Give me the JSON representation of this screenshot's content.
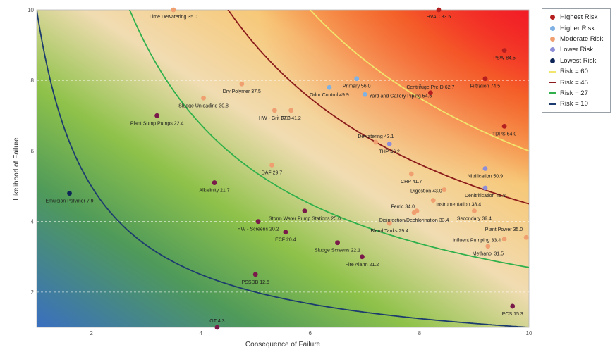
{
  "chart_data": {
    "type": "scatter",
    "xlabel": "Consequence of Failure",
    "ylabel": "Likelihood of Failure",
    "xlim": [
      1,
      10
    ],
    "ylim": [
      1,
      10
    ],
    "x_ticks": [
      "2",
      "4",
      "6",
      "8",
      "10"
    ],
    "y_ticks": [
      "2",
      "4",
      "6",
      "8",
      "10"
    ],
    "grid": "horizontal dashed",
    "legend_position": "right",
    "categories": [
      {
        "name": "Highest Risk",
        "color": "#b41e1e"
      },
      {
        "name": "Higher Risk",
        "color": "#7fb1e3"
      },
      {
        "name": "Moderate Risk",
        "color": "#f0a070"
      },
      {
        "name": "Lower Risk",
        "color": "#8e8ed8"
      },
      {
        "name": "Lowest Risk",
        "color": "#0d2456"
      }
    ],
    "curves": [
      {
        "name": "Risk = 60",
        "value": 60,
        "color": "#f2e56e"
      },
      {
        "name": "Risk = 45",
        "value": 45,
        "color": "#8b1a1a"
      },
      {
        "name": "Risk = 27",
        "value": 27,
        "color": "#2fb04a"
      },
      {
        "name": "Risk = 10",
        "value": 10,
        "color": "#1c3b6e"
      }
    ],
    "points": [
      {
        "label": "HVAC 83.5",
        "x": 8.35,
        "y": 10.0,
        "color": "#b41e1e",
        "anchor": "middle",
        "dx": 0,
        "dy": 12
      },
      {
        "label": "PSW 84.5",
        "x": 9.55,
        "y": 8.85,
        "color": "#b41e1e",
        "anchor": "middle",
        "dx": 0,
        "dy": 13
      },
      {
        "label": "Filtration 74.5",
        "x": 9.2,
        "y": 8.05,
        "color": "#b41e1e",
        "anchor": "middle",
        "dx": 0,
        "dy": 13
      },
      {
        "label": "TDPS 64.0",
        "x": 9.55,
        "y": 6.7,
        "color": "#b41e1e",
        "anchor": "middle",
        "dx": 0,
        "dy": 13
      },
      {
        "label": "Centrifuge Pre-D 62.7",
        "x": 8.2,
        "y": 7.65,
        "color": "#b41e1e",
        "anchor": "middle",
        "dx": 0,
        "dy": -6
      },
      {
        "label": "Primary 56.0",
        "x": 6.85,
        "y": 8.05,
        "color": "#7fb1e3",
        "anchor": "middle",
        "dx": 0,
        "dy": 13
      },
      {
        "label": "Odor Control 49.9",
        "x": 6.35,
        "y": 7.8,
        "color": "#7fb1e3",
        "anchor": "middle",
        "dx": 0,
        "dy": 13
      },
      {
        "label": "Yard and Gallery Piping 54.5",
        "x": 7.0,
        "y": 7.6,
        "color": "#7fb1e3",
        "anchor": "start",
        "dx": 6,
        "dy": 4
      },
      {
        "label": "THP 46.2",
        "x": 7.45,
        "y": 6.2,
        "color": "#8e8ed8",
        "anchor": "middle",
        "dx": 0,
        "dy": 13
      },
      {
        "label": "Nitrification 50.9",
        "x": 9.2,
        "y": 5.5,
        "color": "#8e8ed8",
        "anchor": "middle",
        "dx": 0,
        "dy": 13
      },
      {
        "label": "Denitrification 45.8",
        "x": 9.2,
        "y": 4.95,
        "color": "#8e8ed8",
        "anchor": "middle",
        "dx": 0,
        "dy": 13
      },
      {
        "label": "Lime Dewatering 35.0",
        "x": 3.5,
        "y": 10.0,
        "color": "#f0a070",
        "anchor": "middle",
        "dx": 0,
        "dy": 12
      },
      {
        "label": "Dry Polymer 37.5",
        "x": 4.75,
        "y": 7.9,
        "color": "#f0a070",
        "anchor": "middle",
        "dx": 0,
        "dy": 13
      },
      {
        "label": "Sludge Unloading 30.8",
        "x": 4.05,
        "y": 7.5,
        "color": "#f0a070",
        "anchor": "middle",
        "dx": 0,
        "dy": 13
      },
      {
        "label": "HW - Grit 37.8",
        "x": 5.35,
        "y": 7.15,
        "color": "#f0a070",
        "anchor": "middle",
        "dx": 0,
        "dy": 13
      },
      {
        "label": "FTF 41.2",
        "x": 5.65,
        "y": 7.15,
        "color": "#f0a070",
        "anchor": "middle",
        "dx": 0,
        "dy": 13
      },
      {
        "label": "Dewatering 43.1",
        "x": 7.2,
        "y": 6.25,
        "color": "#f0a070",
        "anchor": "middle",
        "dx": 0,
        "dy": -6
      },
      {
        "label": "DAF 29.7",
        "x": 5.3,
        "y": 5.6,
        "color": "#f0a070",
        "anchor": "middle",
        "dx": 0,
        "dy": 13
      },
      {
        "label": "CHP 41.7",
        "x": 7.85,
        "y": 5.35,
        "color": "#f0a070",
        "anchor": "middle",
        "dx": 0,
        "dy": 13
      },
      {
        "label": "Digestion 43.0",
        "x": 8.45,
        "y": 4.9,
        "color": "#f0a070",
        "anchor": "end",
        "dx": -3,
        "dy": 4
      },
      {
        "label": "Instrumentation 38.4",
        "x": 8.25,
        "y": 4.6,
        "color": "#f0a070",
        "anchor": "start",
        "dx": 4,
        "dy": 8
      },
      {
        "label": "Ferric 34.0",
        "x": 7.95,
        "y": 4.3,
        "color": "#f0a070",
        "anchor": "end",
        "dx": -3,
        "dy": -4
      },
      {
        "label": "Disinfection/Dechlorination 33.4",
        "x": 7.9,
        "y": 4.25,
        "color": "#f0a070",
        "anchor": "middle",
        "dx": 0,
        "dy": 13
      },
      {
        "label": "Secondary 39.4",
        "x": 9.0,
        "y": 4.3,
        "color": "#f0a070",
        "anchor": "middle",
        "dx": 0,
        "dy": 13
      },
      {
        "label": "Blend Tanks 29.4",
        "x": 7.45,
        "y": 3.95,
        "color": "#f0a070",
        "anchor": "middle",
        "dx": 0,
        "dy": 13
      },
      {
        "label": "Plant Power 35.0",
        "x": 9.95,
        "y": 3.55,
        "color": "#f0a070",
        "anchor": "end",
        "dx": -5,
        "dy": -9
      },
      {
        "label": "Influent Pumping 33.4",
        "x": 9.55,
        "y": 3.5,
        "color": "#f0a070",
        "anchor": "end",
        "dx": -5,
        "dy": 4
      },
      {
        "label": "Methanol 31.5",
        "x": 9.25,
        "y": 3.3,
        "color": "#f0a070",
        "anchor": "middle",
        "dx": 0,
        "dy": 13
      },
      {
        "label": "Plant Sump Pumps 22.4",
        "x": 3.2,
        "y": 7.0,
        "color": "#7a1a4a",
        "anchor": "middle",
        "dx": 0,
        "dy": 13
      },
      {
        "label": "Alkalinity 21.7",
        "x": 4.25,
        "y": 5.1,
        "color": "#7a1a4a",
        "anchor": "middle",
        "dx": 0,
        "dy": 13
      },
      {
        "label": "Storm Water Pump Stations 25.6",
        "x": 5.9,
        "y": 4.3,
        "color": "#7a1a4a",
        "anchor": "middle",
        "dx": 0,
        "dy": 13
      },
      {
        "label": "HW - Screens 20.2",
        "x": 5.05,
        "y": 4.0,
        "color": "#7a1a4a",
        "anchor": "middle",
        "dx": 0,
        "dy": 13
      },
      {
        "label": "ECF 20.4",
        "x": 5.55,
        "y": 3.7,
        "color": "#7a1a4a",
        "anchor": "middle",
        "dx": 0,
        "dy": 13
      },
      {
        "label": "Sludge Screens 22.1",
        "x": 6.5,
        "y": 3.4,
        "color": "#7a1a4a",
        "anchor": "middle",
        "dx": 0,
        "dy": 13
      },
      {
        "label": "Fire Alarm 21.2",
        "x": 6.95,
        "y": 3.0,
        "color": "#7a1a4a",
        "anchor": "middle",
        "dx": 0,
        "dy": 13
      },
      {
        "label": "PSSDB 12.5",
        "x": 5.0,
        "y": 2.5,
        "color": "#7a1a4a",
        "anchor": "middle",
        "dx": 0,
        "dy": 13
      },
      {
        "label": "GT 4.3",
        "x": 4.3,
        "y": 1.0,
        "color": "#7a1a4a",
        "anchor": "middle",
        "dx": 0,
        "dy": -7
      },
      {
        "label": "PCS 15.3",
        "x": 9.7,
        "y": 1.6,
        "color": "#7a1a4a",
        "anchor": "middle",
        "dx": 0,
        "dy": 13
      },
      {
        "label": "Emulsion Polymer 7.9",
        "x": 1.6,
        "y": 4.8,
        "color": "#0d2456",
        "anchor": "middle",
        "dx": 0,
        "dy": 13
      }
    ]
  },
  "legend": [
    {
      "label": "Highest Risk",
      "kind": "dot",
      "color": "#b41e1e"
    },
    {
      "label": "Higher Risk",
      "kind": "dot",
      "color": "#7fb1e3"
    },
    {
      "label": "Moderate Risk",
      "kind": "dot",
      "color": "#f0a070"
    },
    {
      "label": "Lower Risk",
      "kind": "dot",
      "color": "#8e8ed8"
    },
    {
      "label": "Lowest Risk",
      "kind": "dot",
      "color": "#0d2456"
    },
    {
      "label": "Risk = 60",
      "kind": "line",
      "color": "#f2e56e"
    },
    {
      "label": "Risk = 45",
      "kind": "line",
      "color": "#8b1a1a"
    },
    {
      "label": "Risk = 27",
      "kind": "line",
      "color": "#2fb04a"
    },
    {
      "label": "Risk = 10",
      "kind": "line",
      "color": "#1c3b6e"
    }
  ]
}
